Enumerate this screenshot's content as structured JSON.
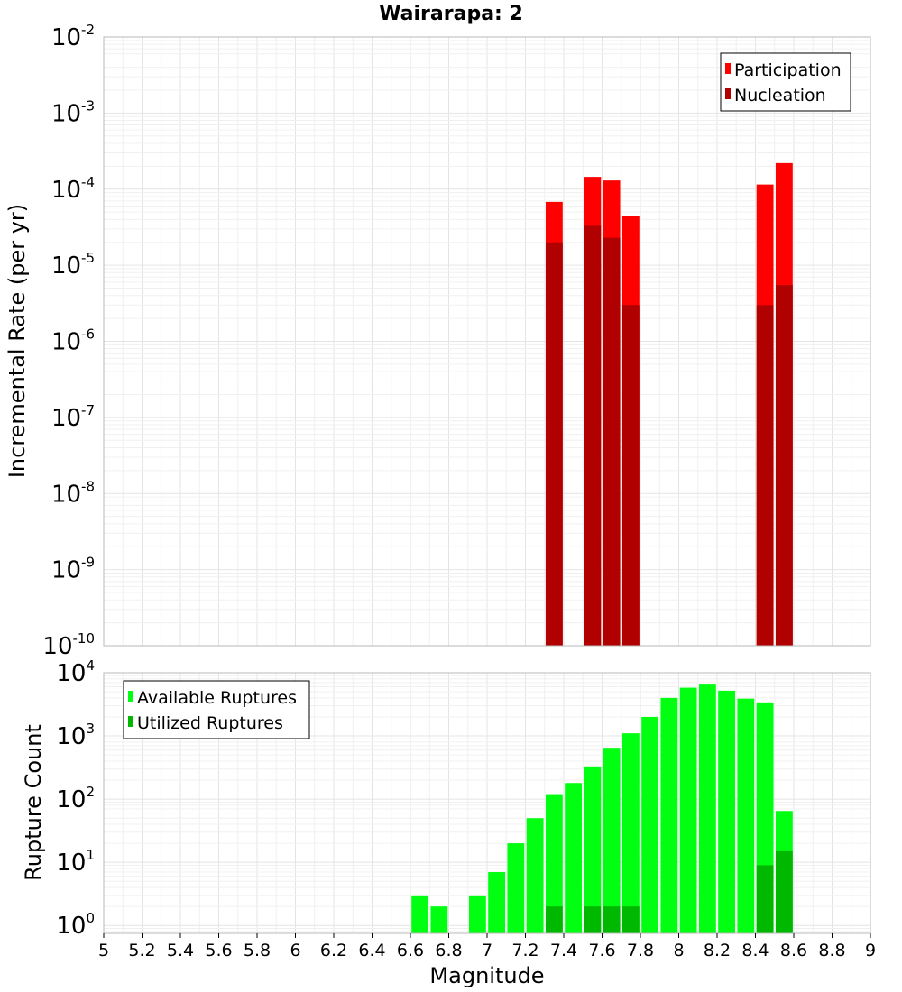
{
  "chart_data": [
    {
      "type": "bar",
      "title": "Wairarapa: 2",
      "xlabel": "",
      "ylabel": "Incremental Rate (per yr)",
      "y_scale": "log",
      "ylim": [
        1e-10,
        0.01
      ],
      "y_tick_exponents": [
        -10,
        -9,
        -8,
        -7,
        -6,
        -5,
        -4,
        -3,
        -2
      ],
      "xlim": [
        5,
        9
      ],
      "bar_width": 0.1,
      "legend_position": "top-right",
      "grid": true,
      "series": [
        {
          "name": "Participation",
          "color": "#ff0000",
          "x": [
            7.35,
            7.55,
            7.65,
            7.75,
            8.45,
            8.55
          ],
          "values": [
            6.8e-05,
            0.000145,
            0.00013,
            4.5e-05,
            0.000115,
            0.00022
          ]
        },
        {
          "name": "Nucleation",
          "color": "#b00000",
          "x": [
            7.35,
            7.55,
            7.65,
            7.75,
            8.45,
            8.55
          ],
          "values": [
            2e-05,
            3.3e-05,
            2.3e-05,
            3e-06,
            3e-06,
            5.5e-06
          ]
        }
      ]
    },
    {
      "type": "bar",
      "title": "",
      "xlabel": "Magnitude",
      "ylabel": "Rupture Count",
      "y_scale": "log",
      "ylim": [
        0.75,
        10000
      ],
      "y_tick_exponents": [
        0,
        1,
        2,
        3,
        4
      ],
      "xlim": [
        5,
        9
      ],
      "x_ticks": [
        "5",
        "5.2",
        "5.4",
        "5.6",
        "5.8",
        "6",
        "6.2",
        "6.4",
        "6.6",
        "6.8",
        "7",
        "7.2",
        "7.4",
        "7.6",
        "7.8",
        "8",
        "8.2",
        "8.4",
        "8.6",
        "8.8",
        "9"
      ],
      "bar_width": 0.1,
      "legend_position": "top-left",
      "grid": true,
      "series": [
        {
          "name": "Available Ruptures",
          "color": "#00ff11",
          "x": [
            6.65,
            6.75,
            6.95,
            7.05,
            7.15,
            7.25,
            7.35,
            7.45,
            7.55,
            7.65,
            7.75,
            7.85,
            7.95,
            8.05,
            8.15,
            8.25,
            8.35,
            8.45,
            8.55
          ],
          "values": [
            3,
            2,
            3,
            7,
            20,
            50,
            120,
            180,
            330,
            650,
            1100,
            2000,
            4000,
            5800,
            6500,
            5200,
            3900,
            3400,
            65
          ]
        },
        {
          "name": "Utilized Ruptures",
          "color": "#00b800",
          "x": [
            7.35,
            7.55,
            7.65,
            7.75,
            8.45,
            8.55
          ],
          "values": [
            2,
            2,
            2,
            2,
            9,
            15
          ]
        }
      ]
    }
  ]
}
